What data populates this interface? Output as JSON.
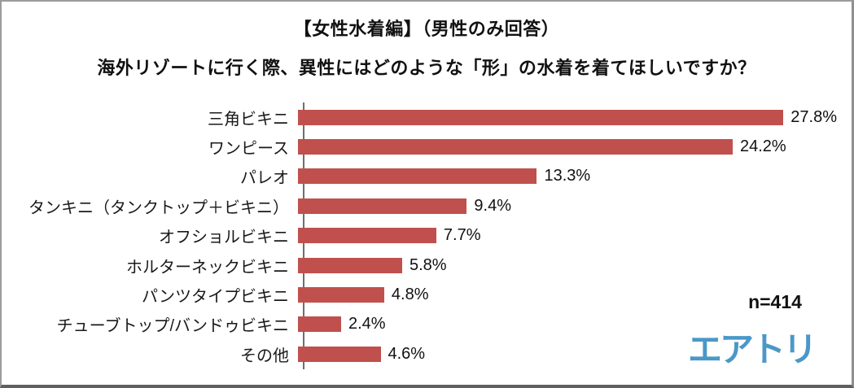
{
  "header": {
    "title": "【女性水着編】（男性のみ回答）",
    "subtitle": "海外リゾートに行く際、異性にはどのような「形」の水着を着てほしいですか？"
  },
  "footer": {
    "sample_size": "n=414",
    "logo_text": "エアトリ"
  },
  "colors": {
    "bar": "#c0504d",
    "logo_blue": "#4b98c8",
    "axis": "#6e6e6e",
    "frame_border": "#9c9c9c"
  },
  "chart_data": {
    "type": "bar",
    "orientation": "horizontal",
    "title": "【女性水着編】（男性のみ回答） 海外リゾートに行く際、異性にはどのような「形」の水着を着てほしいですか？",
    "xlabel": "",
    "ylabel": "",
    "xlim": [
      0,
      30
    ],
    "grid": false,
    "legend": false,
    "categories": [
      "三角ビキニ",
      "ワンピース",
      "パレオ",
      "タンキニ（タンクトップ＋ビキニ）",
      "オフショルビキニ",
      "ホルターネックビキニ",
      "パンツタイプビキニ",
      "チューブトップ/バンドゥビキニ",
      "その他"
    ],
    "values": [
      27.8,
      24.2,
      13.3,
      9.4,
      7.7,
      5.8,
      4.8,
      2.4,
      4.6
    ],
    "value_labels": [
      "27.8%",
      "24.2%",
      "13.3%",
      "9.4%",
      "7.7%",
      "5.8%",
      "4.8%",
      "2.4%",
      "4.6%"
    ]
  }
}
